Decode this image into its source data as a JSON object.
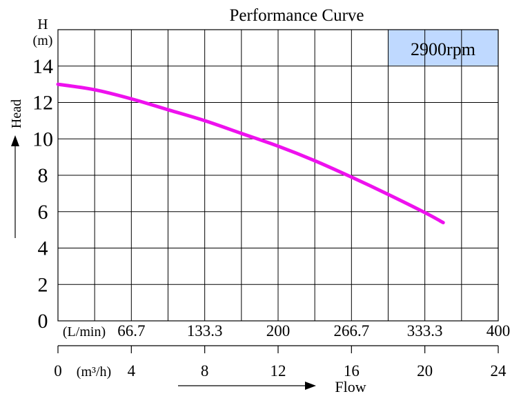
{
  "chart_data": {
    "type": "line",
    "title": "Performance Curve",
    "badge": "2900rpm",
    "ylabel_symbol": "H",
    "ylabel_unit": "(m)",
    "ylabel_side": "Head",
    "xlabel": "Flow",
    "x_unit_m3h": "(m³/h)",
    "x_unit_lmin": "(L/min)",
    "yticks": [
      "0",
      "2",
      "4",
      "6",
      "8",
      "10",
      "12",
      "14"
    ],
    "xticks_m3h": [
      "0",
      "4",
      "8",
      "12",
      "16",
      "20",
      "24"
    ],
    "xticks_lmin": [
      "66.7",
      "133.3",
      "200",
      "266.7",
      "333.3",
      "400"
    ],
    "xlim": [
      0,
      24
    ],
    "ylim": [
      0,
      16
    ],
    "grid": true,
    "series": [
      {
        "x": [
          0,
          2,
          4,
          6,
          8,
          10,
          12,
          14,
          16,
          18,
          20,
          21
        ],
        "y": [
          13.0,
          12.7,
          12.2,
          11.6,
          11.0,
          10.3,
          9.6,
          8.8,
          7.9,
          6.95,
          5.95,
          5.4
        ]
      }
    ],
    "colors": {
      "curve": "#ee11ee",
      "badge_fill": "#bfd9ff",
      "arrow": "#000000"
    }
  }
}
